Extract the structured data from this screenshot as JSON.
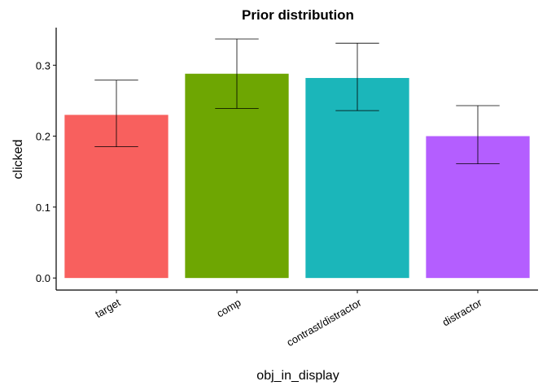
{
  "chart_data": {
    "type": "bar",
    "title": "Prior distribution",
    "xlabel": "obj_in_display",
    "ylabel": "clicked",
    "categories": [
      "target",
      "comp",
      "contrast/distractor",
      "distractor"
    ],
    "values": [
      0.23,
      0.288,
      0.282,
      0.2
    ],
    "error_low": [
      0.185,
      0.239,
      0.236,
      0.161
    ],
    "error_high": [
      0.279,
      0.337,
      0.331,
      0.243
    ],
    "colors": [
      "#F8605E",
      "#6EA602",
      "#1BB6BA",
      "#B45EFF"
    ],
    "ylim": [
      -0.017,
      0.353
    ],
    "yticks": [
      0.0,
      0.1,
      0.2,
      0.3
    ],
    "ytick_labels": [
      "0.0",
      "0.1",
      "0.2",
      "0.3"
    ],
    "grid": false,
    "legend": "none"
  }
}
